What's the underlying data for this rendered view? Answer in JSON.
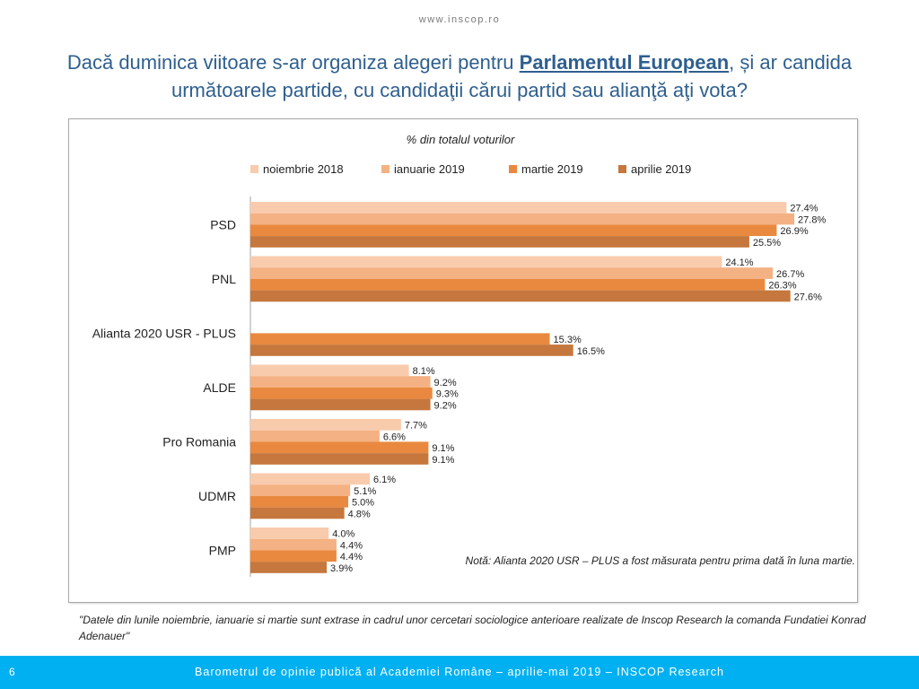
{
  "site_url": "www.inscop.ro",
  "title": {
    "part1": "Dacă duminica viitoare s-ar organiza alegeri pentru ",
    "emphasis": "Parlamentul European",
    "part2": ", și ar candida următoarele partide, cu candidaţii cărui partid sau alianţă aţi vota?"
  },
  "chart_data": {
    "type": "bar",
    "orientation": "horizontal",
    "subtitle": "% din totalul voturilor",
    "categories": [
      "PSD",
      "PNL",
      "Alianta 2020 USR - PLUS",
      "ALDE",
      "Pro Romania",
      "UDMR",
      "PMP"
    ],
    "series": [
      {
        "name": "noiembrie 2018",
        "color": "#f8cbad",
        "values": [
          27.4,
          24.1,
          null,
          8.1,
          7.7,
          6.1,
          4.0
        ]
      },
      {
        "name": "ianuarie 2019",
        "color": "#f4b183",
        "values": [
          27.8,
          26.7,
          null,
          9.2,
          6.6,
          5.1,
          4.4
        ]
      },
      {
        "name": "martie 2019",
        "color": "#e9893f",
        "values": [
          26.9,
          26.3,
          15.3,
          9.3,
          9.1,
          5.0,
          4.4
        ]
      },
      {
        "name": "aprilie 2019",
        "color": "#c5773d",
        "values": [
          25.5,
          27.6,
          16.5,
          9.2,
          9.1,
          4.8,
          3.9
        ]
      }
    ],
    "value_suffix": "%",
    "xlim": [
      0,
      30
    ],
    "grid": false,
    "legend_position": "top",
    "note": "Notă: Alianta 2020 USR – PLUS a fost măsurata pentru prima dată în luna martie."
  },
  "footnote": "\"Datele din lunile noiembrie, ianuarie si martie sunt extrase in cadrul unor cercetari sociologice anterioare realizate de Inscop Research la comanda Fundatiei Konrad Adenauer\"",
  "footer": {
    "page_number": "6",
    "text": "Barometrul de opinie publică al Academiei Române – aprilie-mai 2019 – INSCOP Research"
  }
}
